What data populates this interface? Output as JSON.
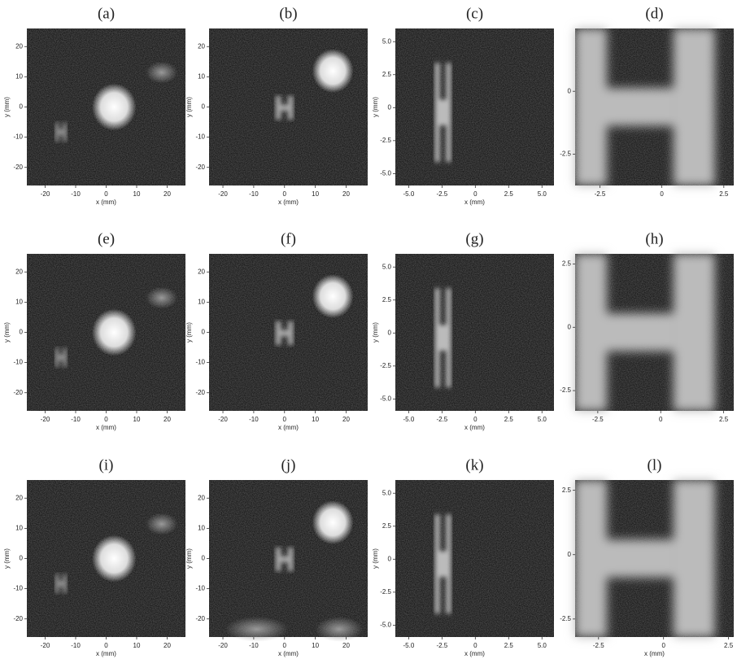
{
  "panels": [
    {
      "label": "(a)",
      "xlabel": "x (mm)",
      "ylabel": "y (mm)",
      "xlim": [
        -26,
        26
      ],
      "ylim": [
        -26,
        26
      ],
      "xticks": [
        -20,
        -10,
        0,
        10,
        20
      ],
      "yticks": [
        20,
        10,
        0,
        -10,
        -20
      ]
    },
    {
      "label": "(b)",
      "xlabel": "x (mm)",
      "ylabel": "y (mm)",
      "xlim": [
        -24.5,
        27
      ],
      "ylim": [
        -26,
        26
      ],
      "xticks": [
        -20,
        -10,
        0,
        10,
        20
      ],
      "yticks": [
        20,
        10,
        0,
        -10,
        -20
      ]
    },
    {
      "label": "(c)",
      "xlabel": "x (mm)",
      "ylabel": "y (mm)",
      "xlim": [
        -6,
        5.9
      ],
      "ylim": [
        -5.9,
        6
      ],
      "xticks": [
        {
          "value": -5,
          "label": "-5.0"
        },
        {
          "value": -2.5,
          "label": "-2.5"
        },
        0,
        2.5,
        {
          "value": 5,
          "label": "5.0"
        }
      ],
      "yticks": [
        {
          "value": 5,
          "label": "5.0"
        },
        2.5,
        0,
        -2.5,
        {
          "value": -5,
          "label": "-5.0"
        }
      ]
    },
    {
      "label": "(d)",
      "xlim": [
        -3.5,
        2.9
      ],
      "ylim": [
        -3.75,
        2.5
      ],
      "xticks": [
        -2.5,
        0,
        2.5
      ],
      "yticks": [
        0,
        -2.5
      ]
    },
    {
      "label": "(e)",
      "xlabel": "x (mm)",
      "ylabel": "y (mm)",
      "xlim": [
        -26,
        26
      ],
      "ylim": [
        -26,
        26
      ],
      "xticks": [
        -20,
        -10,
        0,
        10,
        20
      ],
      "yticks": [
        20,
        10,
        0,
        -10,
        -20
      ]
    },
    {
      "label": "(f)",
      "xlabel": "x (mm)",
      "ylabel": "y (mm)",
      "xlim": [
        -24.5,
        27
      ],
      "ylim": [
        -26,
        26
      ],
      "xticks": [
        -20,
        -10,
        0,
        10,
        20
      ],
      "yticks": [
        20,
        10,
        0,
        -10,
        -20
      ]
    },
    {
      "label": "(g)",
      "xlabel": "x (mm)",
      "ylabel": "y (mm)",
      "xlim": [
        -6,
        5.9
      ],
      "ylim": [
        -5.9,
        6
      ],
      "xticks": [
        {
          "value": -5,
          "label": "-5.0"
        },
        {
          "value": -2.5,
          "label": "-2.5"
        },
        0,
        2.5,
        {
          "value": 5,
          "label": "5.0"
        }
      ],
      "yticks": [
        {
          "value": 5,
          "label": "5.0"
        },
        2.5,
        0,
        -2.5,
        {
          "value": -5,
          "label": "-5.0"
        }
      ]
    },
    {
      "label": "(h)",
      "xlim": [
        -3.4,
        2.9
      ],
      "ylim": [
        -3.3,
        2.9
      ],
      "xticks": [
        -2.5,
        0,
        2.5
      ],
      "yticks": [
        2.5,
        0,
        -2.5
      ]
    },
    {
      "label": "(i)",
      "xlabel": "x (mm)",
      "ylabel": "y (mm)",
      "xlim": [
        -26,
        26
      ],
      "ylim": [
        -26,
        26
      ],
      "xticks": [
        -20,
        -10,
        0,
        10,
        20
      ],
      "yticks": [
        20,
        10,
        0,
        -10,
        -20
      ]
    },
    {
      "label": "(j)",
      "xlabel": "x (mm)",
      "ylabel": "y (mm)",
      "xlim": [
        -24.5,
        27
      ],
      "ylim": [
        -26,
        26
      ],
      "xticks": [
        -20,
        -10,
        0,
        10,
        20
      ],
      "yticks": [
        20,
        10,
        0,
        -10,
        -20
      ]
    },
    {
      "label": "(k)",
      "xlabel": "x (mm)",
      "ylabel": "y (mm)",
      "xlim": [
        -6,
        5.9
      ],
      "ylim": [
        -5.9,
        6
      ],
      "xticks": [
        {
          "value": -5,
          "label": "-5.0"
        },
        {
          "value": -2.5,
          "label": "-2.5"
        },
        0,
        2.5,
        {
          "value": 5,
          "label": "5.0"
        }
      ],
      "yticks": [
        {
          "value": 5,
          "label": "5.0"
        },
        2.5,
        0,
        -2.5,
        {
          "value": -5,
          "label": "-5.0"
        }
      ]
    },
    {
      "label": "(l)",
      "xlabel": "x (mm)",
      "xlim": [
        -3.4,
        2.7
      ],
      "ylim": [
        -3.2,
        2.9
      ],
      "xticks": [
        -2.5,
        0,
        2.5
      ],
      "yticks": [
        2.5,
        0,
        -2.5
      ]
    }
  ]
}
